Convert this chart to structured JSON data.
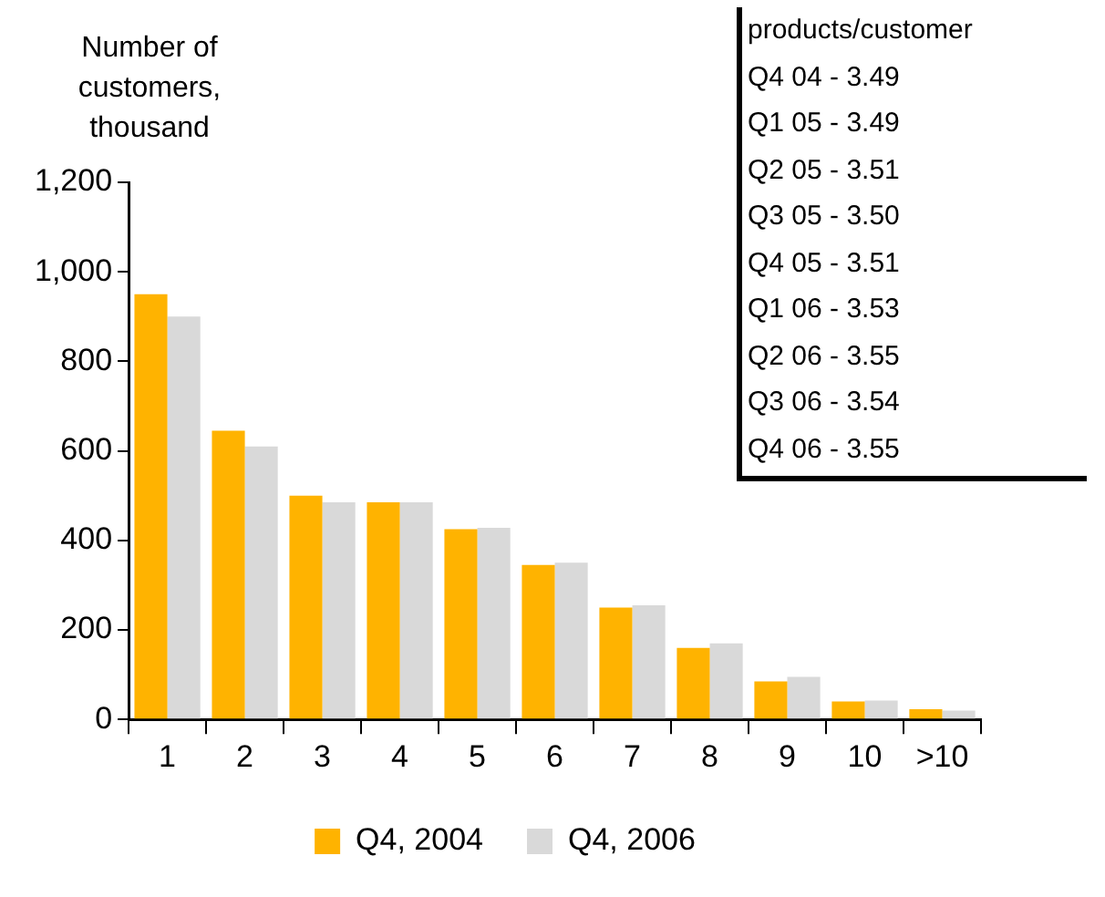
{
  "chart_data": {
    "type": "bar",
    "ylabel": "Number of customers, thousand",
    "categories": [
      "1",
      "2",
      "3",
      "4",
      "5",
      "6",
      "7",
      "8",
      "9",
      "10",
      ">10"
    ],
    "series": [
      {
        "name": "Q4, 2004",
        "color": "#ffb300",
        "values": [
          950,
          645,
          500,
          485,
          425,
          345,
          250,
          160,
          85,
          40,
          23
        ]
      },
      {
        "name": "Q4, 2006",
        "color": "#d9d9d9",
        "values": [
          900,
          610,
          485,
          485,
          428,
          350,
          255,
          170,
          95,
          42,
          20
        ]
      }
    ],
    "ylim": [
      0,
      1200
    ],
    "yticks": [
      0,
      {
        "value": 200,
        "label": "200"
      },
      {
        "value": 400,
        "label": "400"
      },
      {
        "value": 600,
        "label": "600"
      },
      {
        "value": 800,
        "label": "800"
      },
      {
        "value": 1000,
        "label": "1,000"
      },
      {
        "value": 1200,
        "label": "1,200"
      }
    ],
    "grid": false,
    "legend": "bottom",
    "annotations": [
      "products/customer",
      "Q4 04 - 3.49",
      "Q1 05 - 3.49",
      "Q2 05 - 3.51",
      "Q3 05 - 3.50",
      "Q4 05 - 3.51",
      "Q1 06 - 3.53",
      "Q2 06 - 3.55",
      "Q3 06 - 3.54",
      "Q4 06 - 3.55"
    ]
  }
}
